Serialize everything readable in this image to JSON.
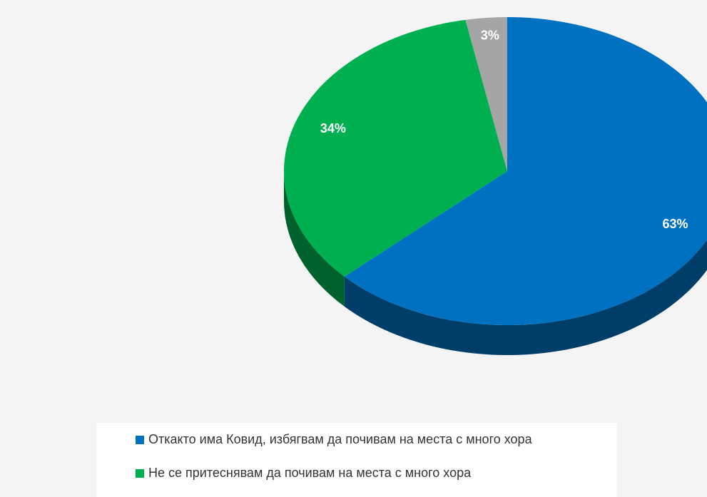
{
  "chart_data": {
    "type": "pie",
    "categories": [
      "Откакто има Ковид, избягвам да почивам на места с много хора",
      "Не се притеснявам да почивам на места с много хора",
      null
    ],
    "values": [
      63,
      34,
      3
    ],
    "value_labels": [
      "63%",
      "34%",
      "3%"
    ],
    "colors": [
      "#0070c0",
      "#00b050",
      "#a5a5a5"
    ]
  }
}
